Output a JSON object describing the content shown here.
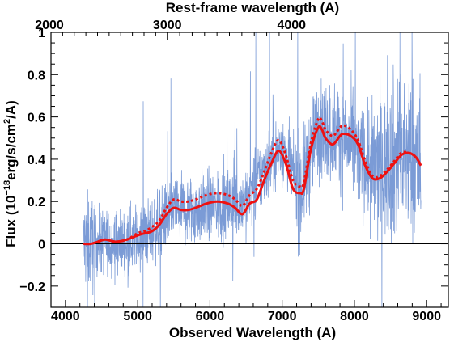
{
  "chart_data": {
    "type": "line",
    "title": "",
    "xlabel": "Observed Wavelength (A)",
    "ylabel": "Flux (10^-18 erg/s/cm^2/A)",
    "top_xlabel": "Rest-frame wavelength (A)",
    "xlim": [
      3800,
      9300
    ],
    "ylim": [
      -0.3,
      1.0
    ],
    "x_ticks": [
      4000,
      5000,
      6000,
      7000,
      8000,
      9000
    ],
    "y_ticks": [
      -0.2,
      0,
      0.2,
      0.4,
      0.6,
      0.8,
      1
    ],
    "y_tick_labels": [
      "-0.2",
      "0",
      "0.2",
      "0.4",
      "0.6",
      "0.8",
      "1"
    ],
    "top_ticks": [
      2000,
      3000,
      4000
    ],
    "top_tick_observed_positions": [
      3800,
      5410,
      7130
    ],
    "zero_line": true,
    "colors": {
      "spectrum": "#7b9bd6",
      "model": "#ee1111",
      "axis": "#000000"
    },
    "series": [
      {
        "style": "observed-spectrum",
        "x": [
          4250,
          4500,
          4750,
          5000,
          5250,
          5500,
          5750,
          6000,
          6250,
          6500,
          6750,
          7000,
          7250,
          7500,
          7750,
          8000,
          8250,
          8500,
          8750,
          8920
        ],
        "y": [
          0.0,
          0.01,
          0.0,
          0.03,
          0.07,
          0.17,
          0.15,
          0.18,
          0.18,
          0.21,
          0.35,
          0.46,
          0.24,
          0.55,
          0.52,
          0.45,
          0.33,
          0.4,
          0.42,
          0.36
        ]
      },
      {
        "style": "model-solid",
        "x": [
          4250,
          4350,
          4450,
          4550,
          4700,
          4850,
          5000,
          5100,
          5200,
          5300,
          5400,
          5500,
          5600,
          5700,
          5800,
          5950,
          6100,
          6250,
          6350,
          6450,
          6550,
          6650,
          6750,
          6850,
          6950,
          7050,
          7150,
          7250,
          7300,
          7400,
          7500,
          7550,
          7600,
          7700,
          7800,
          7850,
          7950,
          8050,
          8150,
          8250,
          8350,
          8450,
          8550,
          8650,
          8750,
          8850,
          8920
        ],
        "y": [
          0.0,
          0.0,
          0.01,
          0.02,
          0.01,
          0.02,
          0.04,
          0.05,
          0.06,
          0.09,
          0.14,
          0.17,
          0.16,
          0.16,
          0.17,
          0.19,
          0.2,
          0.19,
          0.17,
          0.14,
          0.19,
          0.21,
          0.3,
          0.38,
          0.44,
          0.38,
          0.26,
          0.24,
          0.26,
          0.45,
          0.55,
          0.54,
          0.5,
          0.47,
          0.51,
          0.52,
          0.51,
          0.47,
          0.37,
          0.31,
          0.31,
          0.34,
          0.38,
          0.42,
          0.43,
          0.41,
          0.37
        ]
      },
      {
        "style": "model-dotted",
        "x": [
          4250,
          4350,
          4450,
          4550,
          4700,
          4850,
          5000,
          5100,
          5200,
          5300,
          5400,
          5500,
          5600,
          5700,
          5800,
          5950,
          6100,
          6250,
          6350,
          6450,
          6550,
          6650,
          6750,
          6850,
          6950,
          7050,
          7150,
          7250,
          7300,
          7400,
          7500,
          7550,
          7600,
          7700,
          7800,
          7850,
          7950,
          8050,
          8150,
          8250,
          8350,
          8450,
          8550,
          8650,
          8750,
          8850,
          8920
        ],
        "y": [
          0.0,
          0.0,
          0.01,
          0.02,
          0.01,
          0.02,
          0.05,
          0.06,
          0.08,
          0.11,
          0.17,
          0.21,
          0.2,
          0.2,
          0.21,
          0.23,
          0.24,
          0.23,
          0.21,
          0.18,
          0.23,
          0.26,
          0.34,
          0.43,
          0.49,
          0.42,
          0.3,
          0.27,
          0.29,
          0.48,
          0.59,
          0.58,
          0.54,
          0.51,
          0.55,
          0.56,
          0.54,
          0.49,
          0.39,
          0.32,
          0.32,
          0.35,
          0.39,
          0.43,
          0.43,
          0.41,
          0.37
        ]
      }
    ]
  }
}
